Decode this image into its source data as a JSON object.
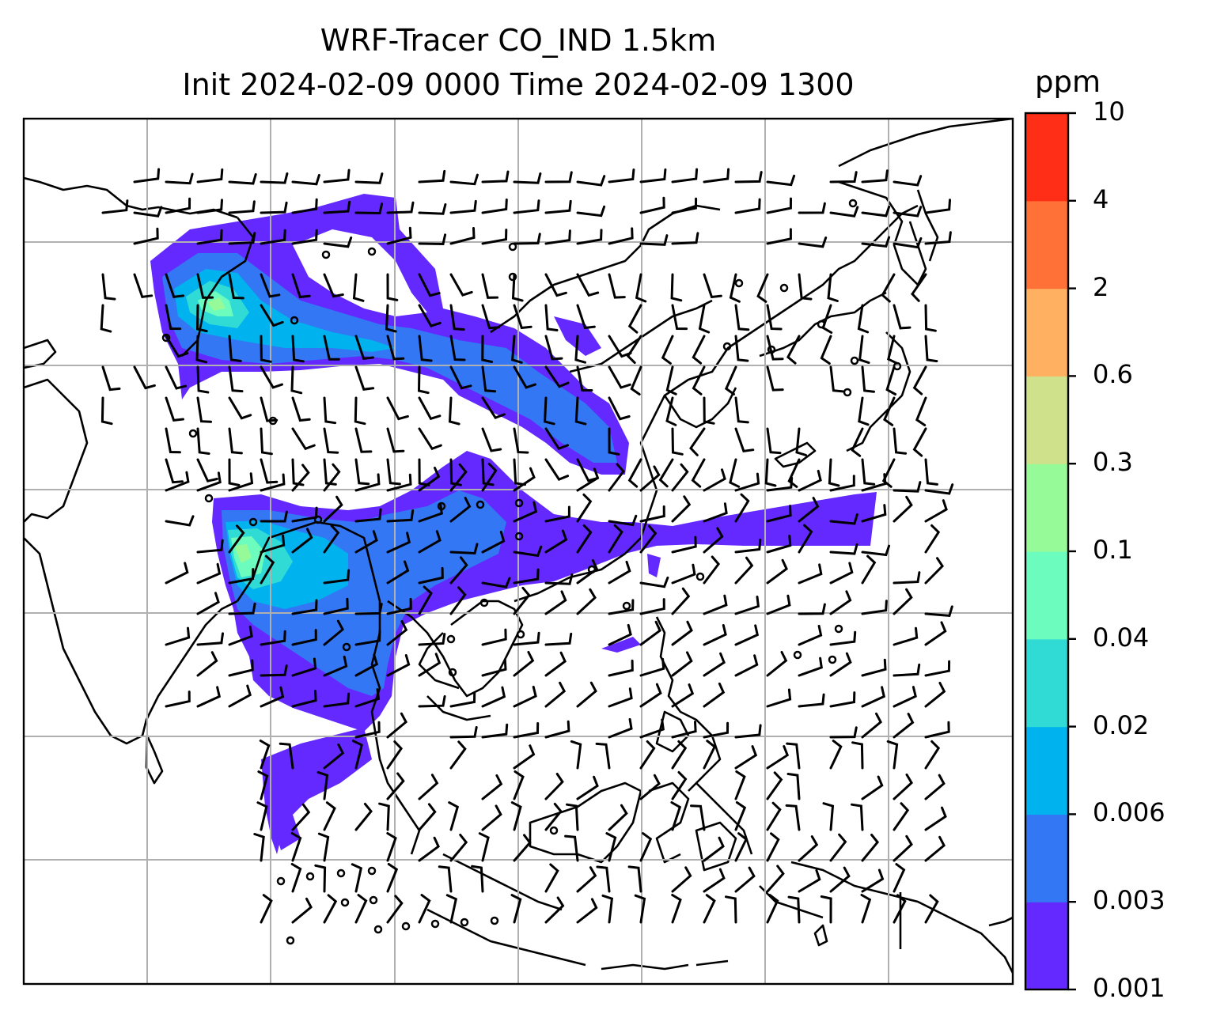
{
  "title": {
    "line1": "WRF-Tracer CO_IND 1.5km",
    "line2": "Init 2024-02-09 0000 Time 2024-02-09 1300"
  },
  "colorbar": {
    "unit": "ppm",
    "ticks": [
      "0.001",
      "0.003",
      "0.006",
      "0.02",
      "0.04",
      "0.1",
      "0.3",
      "0.6",
      "2",
      "4",
      "10"
    ],
    "colors": [
      "#6329ff",
      "#3377f4",
      "#00b2ed",
      "#31dbd5",
      "#6bfcbe",
      "#97fa98",
      "#cfe18a",
      "#ffb060",
      "#ff7137",
      "#ff2e17"
    ]
  },
  "map": {
    "field": "CO_IND",
    "gridlines": true,
    "wind_barbs": true
  }
}
